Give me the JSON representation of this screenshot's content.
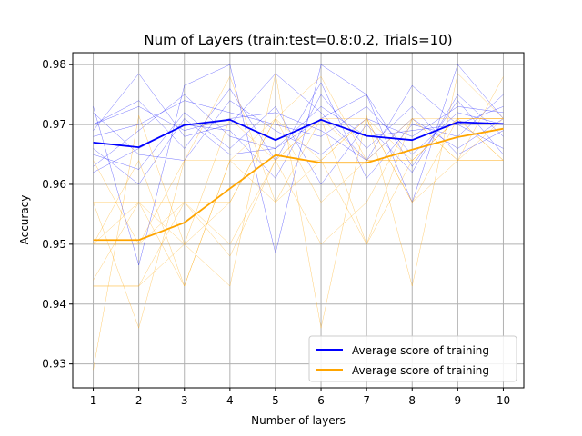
{
  "chart_data": {
    "type": "line",
    "title": "Num of Layers (train:test=0.8:0.2, Trials=10)",
    "xlabel": "Number of layers",
    "ylabel": "Accuracy",
    "x": [
      1,
      2,
      3,
      4,
      5,
      6,
      7,
      8,
      9,
      10
    ],
    "xlim": [
      0.55,
      10.45
    ],
    "ylim": [
      0.926,
      0.982
    ],
    "yticks": [
      0.93,
      0.94,
      0.95,
      0.96,
      0.97,
      0.98
    ],
    "xticks": [
      1,
      2,
      3,
      4,
      5,
      6,
      7,
      8,
      9,
      10
    ],
    "grid": true,
    "legend_position": "lower-right",
    "series": [
      {
        "name": "Average score of training",
        "color": "#0000ff",
        "values": [
          0.967,
          0.9662,
          0.9699,
          0.9708,
          0.9674,
          0.9708,
          0.9681,
          0.9674,
          0.9704,
          0.9701
        ]
      },
      {
        "name": "Average score of training",
        "color": "#ffa500",
        "values": [
          0.9507,
          0.9507,
          0.9536,
          0.9593,
          0.9649,
          0.9636,
          0.9636,
          0.9658,
          0.9679,
          0.9693
        ]
      }
    ],
    "trials": [
      {
        "color": "#0000ff",
        "values": [
          0.973,
          0.9465,
          0.9765,
          0.98,
          0.9485,
          0.98,
          0.975,
          0.957,
          0.98,
          0.971
        ]
      },
      {
        "color": "#0000ff",
        "values": [
          0.969,
          0.9785,
          0.968,
          0.97,
          0.9785,
          0.972,
          0.964,
          0.9765,
          0.97,
          0.973
        ]
      },
      {
        "color": "#0000ff",
        "values": [
          0.965,
          0.9625,
          0.972,
          0.966,
          0.973,
          0.96,
          0.97,
          0.962,
          0.975,
          0.968
        ]
      },
      {
        "color": "#0000ff",
        "values": [
          0.97,
          0.974,
          0.966,
          0.976,
          0.964,
          0.977,
          0.961,
          0.97,
          0.968,
          0.975
        ]
      },
      {
        "color": "#0000ff",
        "values": [
          0.968,
          0.97,
          0.974,
          0.972,
          0.97,
          0.968,
          0.973,
          0.965,
          0.972,
          0.97
        ]
      },
      {
        "color": "#0000ff",
        "values": [
          0.962,
          0.966,
          0.97,
          0.969,
          0.961,
          0.975,
          0.966,
          0.973,
          0.965,
          0.969
        ]
      },
      {
        "color": "#0000ff",
        "values": [
          0.972,
          0.965,
          0.964,
          0.974,
          0.969,
          0.965,
          0.971,
          0.968,
          0.973,
          0.972
        ]
      },
      {
        "color": "#0000ff",
        "values": [
          0.966,
          0.96,
          0.971,
          0.965,
          0.966,
          0.973,
          0.968,
          0.969,
          0.97,
          0.966
        ]
      },
      {
        "color": "#0000ff",
        "values": [
          0.97,
          0.973,
          0.969,
          0.971,
          0.972,
          0.969,
          0.964,
          0.971,
          0.966,
          0.971
        ]
      },
      {
        "color": "#0000ff",
        "values": [
          0.963,
          0.969,
          0.975,
          0.968,
          0.966,
          0.971,
          0.975,
          0.963,
          0.974,
          0.965
        ]
      },
      {
        "color": "#ffa500",
        "values": [
          0.929,
          0.9715,
          0.95,
          0.943,
          0.9785,
          0.936,
          0.9715,
          0.943,
          0.9785,
          0.971
        ]
      },
      {
        "color": "#ffa500",
        "values": [
          0.957,
          0.936,
          0.964,
          0.978,
          0.957,
          0.971,
          0.95,
          0.971,
          0.964,
          0.964
        ]
      },
      {
        "color": "#ffa500",
        "values": [
          0.95,
          0.957,
          0.943,
          0.964,
          0.971,
          0.957,
          0.964,
          0.964,
          0.971,
          0.971
        ]
      },
      {
        "color": "#ffa500",
        "values": [
          0.943,
          0.943,
          0.957,
          0.95,
          0.964,
          0.964,
          0.971,
          0.957,
          0.964,
          0.978
        ]
      },
      {
        "color": "#ffa500",
        "values": [
          0.957,
          0.957,
          0.95,
          0.971,
          0.964,
          0.95,
          0.957,
          0.971,
          0.971,
          0.964
        ]
      },
      {
        "color": "#ffa500",
        "values": [
          0.95,
          0.95,
          0.957,
          0.957,
          0.971,
          0.978,
          0.964,
          0.964,
          0.964,
          0.971
        ]
      },
      {
        "color": "#ffa500",
        "values": [
          0.964,
          0.95,
          0.964,
          0.964,
          0.957,
          0.964,
          0.971,
          0.957,
          0.971,
          0.971
        ]
      },
      {
        "color": "#ffa500",
        "values": [
          0.95,
          0.964,
          0.943,
          0.964,
          0.964,
          0.971,
          0.964,
          0.971,
          0.964,
          0.964
        ]
      },
      {
        "color": "#ffa500",
        "values": [
          0.943,
          0.943,
          0.95,
          0.957,
          0.971,
          0.964,
          0.95,
          0.964,
          0.971,
          0.971
        ]
      },
      {
        "color": "#ffa500",
        "values": [
          0.944,
          0.957,
          0.957,
          0.948,
          0.964,
          0.971,
          0.971,
          0.964,
          0.971,
          0.964
        ]
      }
    ]
  }
}
